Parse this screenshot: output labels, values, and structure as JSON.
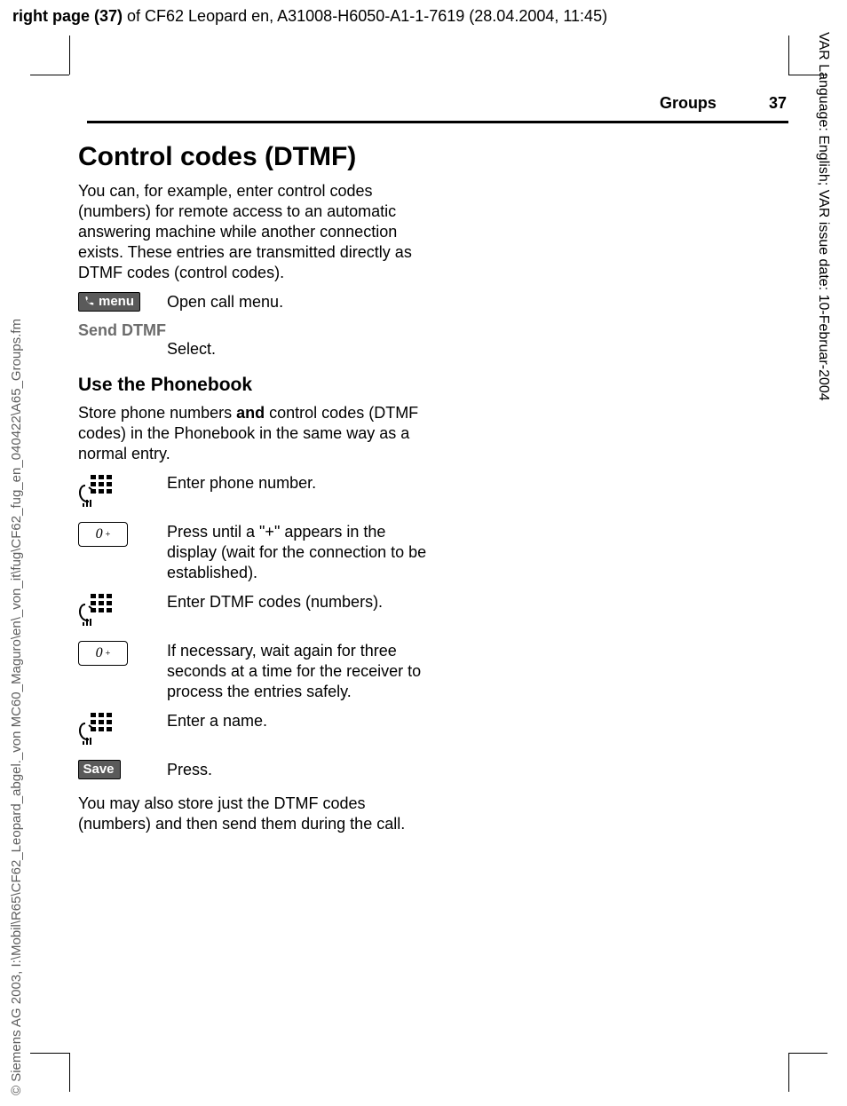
{
  "top_header": {
    "prefix_bold": "right page (37)",
    "rest": " of CF62 Leopard en, A31008-H6050-A1-1-7619 (28.04.2004, 11:45)"
  },
  "left_rail": "© Siemens AG 2003, I:\\Mobil\\R65\\CF62_Leopard_abgel._von MC60_Maguro\\en\\_von_it\\fug\\CF62_fug_en_040422\\A65_Groups.fm",
  "right_rail": "VAR Language: English; VAR issue date: 10-Februar-2004",
  "running_head": {
    "section": "Groups",
    "page_number": "37"
  },
  "h1": "Control codes (DTMF)",
  "intro": "You can, for example, enter control codes (numbers) for remote access to an automatic answering machine while another connection exists. These entries are transmitted directly as DTMF  codes (control codes).",
  "menu_softkey_label": "menu",
  "menu_action": "Open call menu.",
  "send_dtmf_label": "Send DTMF",
  "select_text": "Select.",
  "h2": "Use the Phonebook",
  "phonebook_intro_parts": {
    "a": "Store phone numbers ",
    "b_bold": "and",
    "c": " control codes (DTMF  codes) in the Phonebook in the same way as a normal entry."
  },
  "steps": [
    {
      "icon": "keypad",
      "text": "Enter phone number."
    },
    {
      "icon": "zero_plus",
      "text": "Press until a \"+\" appears in the display (wait for the connection to be established)."
    },
    {
      "icon": "keypad",
      "text": "Enter DTMF codes (numbers)."
    },
    {
      "icon": "zero_plus",
      "text": "If necessary, wait again for three seconds at a time for the receiver to process the entries safely."
    },
    {
      "icon": "keypad",
      "text": "Enter a name."
    },
    {
      "icon": "save_softkey",
      "text": "Press."
    }
  ],
  "save_label": "Save",
  "zero_key_label": "0",
  "outro": "You may also store just the DTMF codes (numbers) and then send them during the call.",
  "colors": {
    "softkey_bg": "#5a5a5a",
    "softkey_fg": "#ffffff",
    "rule": "#000000",
    "left_rail_text": "#5e5e5e"
  }
}
